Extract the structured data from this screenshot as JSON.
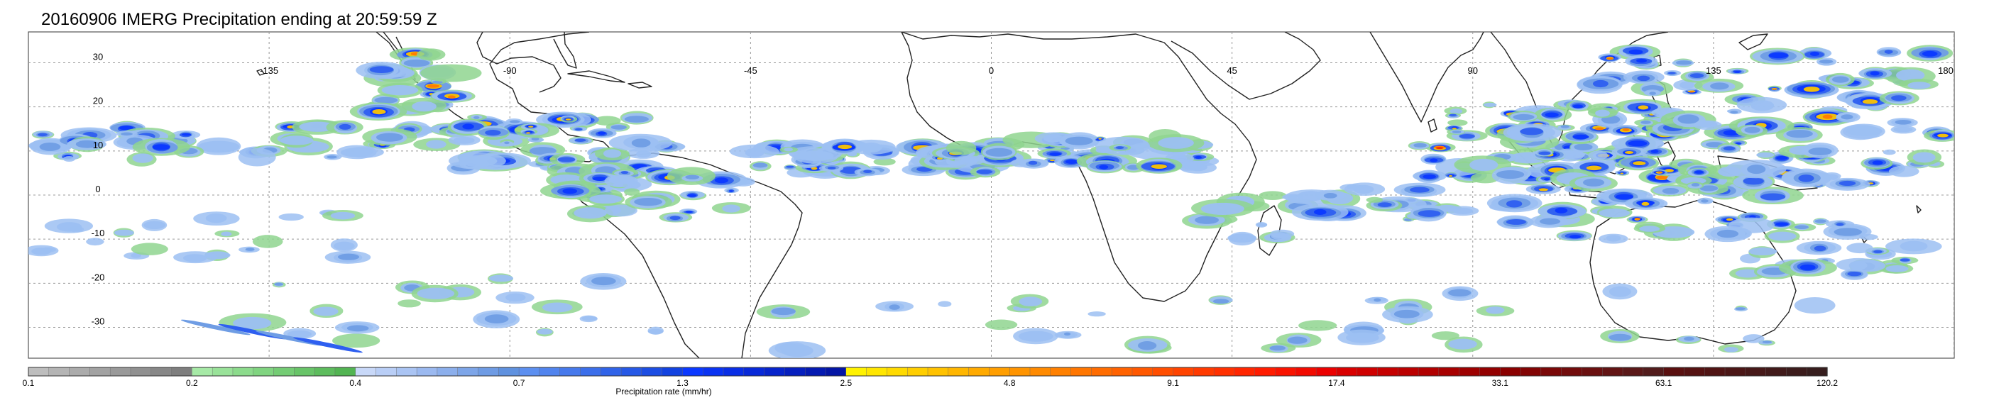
{
  "title": "20160906 IMERG Precipitation ending at 20:59:59 Z",
  "map": {
    "lat_labels": [
      "30",
      "20",
      "10",
      "0",
      "-10",
      "-20",
      "-30"
    ],
    "lat_values": [
      30,
      20,
      10,
      0,
      -10,
      -20,
      -30
    ],
    "lon_labels": [
      "-135",
      "-90",
      "-45",
      "0",
      "45",
      "90",
      "135",
      "180"
    ],
    "lon_values": [
      -135,
      -90,
      -45,
      0,
      45,
      90,
      135,
      180
    ],
    "lon_range": [
      -180,
      180
    ],
    "lat_range": [
      -37,
      37
    ],
    "grid": "dotted"
  },
  "colorbar": {
    "title": "Precipitation rate (mm/hr)",
    "tick_labels": [
      "0.1",
      "0.2",
      "0.4",
      "0.7",
      "1.3",
      "2.5",
      "4.8",
      "9.1",
      "17.4",
      "33.1",
      "63.1",
      "120.2"
    ],
    "groups": [
      {
        "from": "0.1",
        "colors": [
          "#bdbdbd",
          "#b4b4b4",
          "#ababab",
          "#a2a2a2",
          "#999999",
          "#909090",
          "#878787",
          "#7e7e7e"
        ]
      },
      {
        "from": "0.2",
        "colors": [
          "#a6e9a6",
          "#99e299",
          "#8cdb8c",
          "#80d480",
          "#74cc74",
          "#68c468",
          "#5dbc5d",
          "#52b452"
        ]
      },
      {
        "from": "0.4",
        "colors": [
          "#c8d8f8",
          "#b9cef6",
          "#aac4f3",
          "#9bb9f0",
          "#8cafec",
          "#7da5e8",
          "#6e9be4",
          "#5f91df"
        ]
      },
      {
        "from": "0.7",
        "colors": [
          "#5c8ff0",
          "#5184ee",
          "#4679ec",
          "#3b6eea",
          "#3063e8",
          "#2658e6",
          "#1c4de3",
          "#1242e0"
        ]
      },
      {
        "from": "1.3",
        "colors": [
          "#0b38ff",
          "#0a33f2",
          "#092ee5",
          "#0829d8",
          "#0724cb",
          "#061fbe",
          "#051ab1",
          "#0415a4"
        ]
      },
      {
        "from": "2.5",
        "colors": [
          "#fff200",
          "#ffe600",
          "#ffda00",
          "#ffce00",
          "#ffc200",
          "#ffb600",
          "#ffaa00",
          "#ff9e00"
        ]
      },
      {
        "from": "4.8",
        "colors": [
          "#ff9400",
          "#ff8a00",
          "#ff8000",
          "#ff7600",
          "#ff6c00",
          "#ff6200",
          "#ff5800",
          "#ff4e00"
        ]
      },
      {
        "from": "9.1",
        "colors": [
          "#ff4400",
          "#ff3a00",
          "#ff3000",
          "#ff2600",
          "#ff1c00",
          "#f91300",
          "#f20a00",
          "#eb0000"
        ]
      },
      {
        "from": "17.4",
        "colors": [
          "#d90000",
          "#cf0000",
          "#c50000",
          "#bb0000",
          "#b10000",
          "#a70000",
          "#9d0000",
          "#930000"
        ]
      },
      {
        "from": "33.1",
        "colors": [
          "#8a0000",
          "#820404",
          "#7a0808",
          "#720c0c",
          "#6a1010",
          "#621414",
          "#5a1818",
          "#521c1c"
        ]
      },
      {
        "from": "63.1",
        "colors": [
          "#5a1010",
          "#551212",
          "#501414",
          "#4b1616",
          "#461818",
          "#411a1a",
          "#3c1c1c",
          "#371e1e"
        ]
      }
    ]
  }
}
